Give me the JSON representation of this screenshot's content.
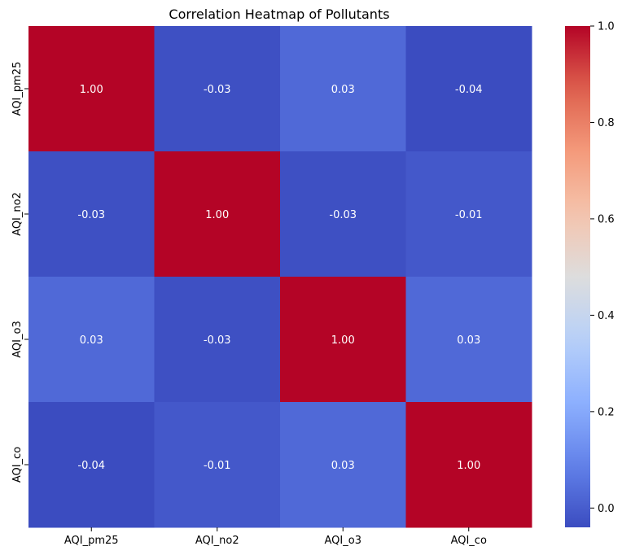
{
  "chart_data": {
    "type": "heatmap",
    "title": "Correlation Heatmap of Pollutants",
    "xlabel": "",
    "ylabel": "",
    "x_categories": [
      "AQI_pm25",
      "AQI_no2",
      "AQI_o3",
      "AQI_co"
    ],
    "y_categories": [
      "AQI_pm25",
      "AQI_no2",
      "AQI_o3",
      "AQI_co"
    ],
    "values": [
      [
        1.0,
        -0.03,
        0.03,
        -0.04
      ],
      [
        -0.03,
        1.0,
        -0.03,
        -0.01
      ],
      [
        0.03,
        -0.03,
        1.0,
        0.03
      ],
      [
        -0.04,
        -0.01,
        0.03,
        1.0
      ]
    ],
    "value_labels": [
      [
        "1.00",
        "-0.03",
        "0.03",
        "-0.04"
      ],
      [
        "-0.03",
        "1.00",
        "-0.03",
        "-0.01"
      ],
      [
        "0.03",
        "-0.03",
        "1.00",
        "0.03"
      ],
      [
        "-0.04",
        "-0.01",
        "0.03",
        "1.00"
      ]
    ],
    "colormap": "coolwarm",
    "colorbar": {
      "range": [
        -0.04,
        1.0
      ],
      "ticks": [
        0.0,
        0.2,
        0.4,
        0.6,
        0.8,
        1.0
      ],
      "tick_labels": [
        "0.0",
        "0.2",
        "0.4",
        "0.6",
        "0.8",
        "1.0"
      ]
    },
    "annotation_color": "#ffffff"
  }
}
